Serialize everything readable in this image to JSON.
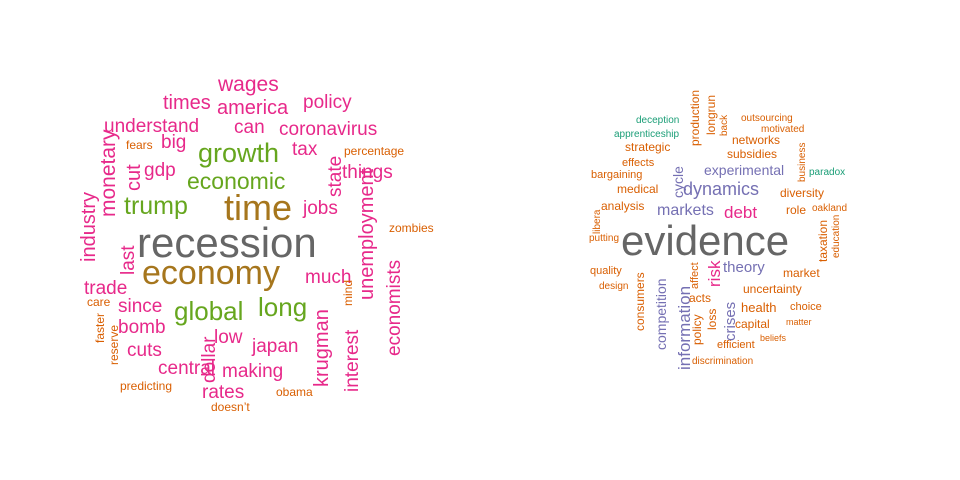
{
  "palette": {
    "gray": "#666666",
    "gold": "#A6761D",
    "green": "#66A61E",
    "pink": "#E7298A",
    "purple": "#7570B3",
    "orange": "#D95F02",
    "teal": "#1B9E77"
  },
  "clouds": [
    {
      "name": "left-word-cloud",
      "words": [
        {
          "text": "recession",
          "color": "gray"
        },
        {
          "text": "economy",
          "color": "gold"
        },
        {
          "text": "time",
          "color": "gold"
        },
        {
          "text": "growth",
          "color": "green"
        },
        {
          "text": "economic",
          "color": "green"
        },
        {
          "text": "trump",
          "color": "green"
        },
        {
          "text": "global",
          "color": "green"
        },
        {
          "text": "long",
          "color": "green"
        },
        {
          "text": "wages",
          "color": "pink"
        },
        {
          "text": "america",
          "color": "pink"
        },
        {
          "text": "times",
          "color": "pink"
        },
        {
          "text": "policy",
          "color": "pink"
        },
        {
          "text": "understand",
          "color": "pink"
        },
        {
          "text": "can",
          "color": "pink"
        },
        {
          "text": "coronavirus",
          "color": "pink"
        },
        {
          "text": "big",
          "color": "pink"
        },
        {
          "text": "tax",
          "color": "pink"
        },
        {
          "text": "monetary",
          "color": "pink"
        },
        {
          "text": "cut",
          "color": "pink"
        },
        {
          "text": "gdp",
          "color": "pink"
        },
        {
          "text": "things",
          "color": "pink"
        },
        {
          "text": "state",
          "color": "pink"
        },
        {
          "text": "jobs",
          "color": "pink"
        },
        {
          "text": "industry",
          "color": "pink"
        },
        {
          "text": "unemployment",
          "color": "pink"
        },
        {
          "text": "economists",
          "color": "pink"
        },
        {
          "text": "last",
          "color": "pink"
        },
        {
          "text": "trade",
          "color": "pink"
        },
        {
          "text": "much",
          "color": "pink"
        },
        {
          "text": "since",
          "color": "pink"
        },
        {
          "text": "bomb",
          "color": "pink"
        },
        {
          "text": "dollar",
          "color": "pink"
        },
        {
          "text": "low",
          "color": "pink"
        },
        {
          "text": "krugman",
          "color": "pink"
        },
        {
          "text": "interest",
          "color": "pink"
        },
        {
          "text": "cuts",
          "color": "pink"
        },
        {
          "text": "japan",
          "color": "pink"
        },
        {
          "text": "central",
          "color": "pink"
        },
        {
          "text": "making",
          "color": "pink"
        },
        {
          "text": "rates",
          "color": "pink"
        },
        {
          "text": "fears",
          "color": "orange"
        },
        {
          "text": "percentage",
          "color": "orange"
        },
        {
          "text": "zombies",
          "color": "orange"
        },
        {
          "text": "care",
          "color": "orange"
        },
        {
          "text": "faster",
          "color": "orange"
        },
        {
          "text": "reserve",
          "color": "orange"
        },
        {
          "text": "mind",
          "color": "orange"
        },
        {
          "text": "predicting",
          "color": "orange"
        },
        {
          "text": "obama",
          "color": "orange"
        },
        {
          "text": "doesn’t",
          "color": "orange"
        }
      ]
    },
    {
      "name": "right-word-cloud",
      "words": [
        {
          "text": "evidence",
          "color": "gray"
        },
        {
          "text": "dynamics",
          "color": "purple"
        },
        {
          "text": "markets",
          "color": "purple"
        },
        {
          "text": "experimental",
          "color": "purple"
        },
        {
          "text": "cycle",
          "color": "purple"
        },
        {
          "text": "theory",
          "color": "purple"
        },
        {
          "text": "information",
          "color": "purple"
        },
        {
          "text": "competition",
          "color": "purple"
        },
        {
          "text": "crises",
          "color": "purple"
        },
        {
          "text": "debt",
          "color": "pink"
        },
        {
          "text": "risk",
          "color": "pink"
        },
        {
          "text": "deception",
          "color": "teal"
        },
        {
          "text": "apprenticeship",
          "color": "teal"
        },
        {
          "text": "paradox",
          "color": "teal"
        },
        {
          "text": "production",
          "color": "orange"
        },
        {
          "text": "longrun",
          "color": "orange"
        },
        {
          "text": "back",
          "color": "orange"
        },
        {
          "text": "outsourcing",
          "color": "orange"
        },
        {
          "text": "motivated",
          "color": "orange"
        },
        {
          "text": "strategic",
          "color": "orange"
        },
        {
          "text": "networks",
          "color": "orange"
        },
        {
          "text": "business",
          "color": "orange"
        },
        {
          "text": "effects",
          "color": "orange"
        },
        {
          "text": "subsidies",
          "color": "orange"
        },
        {
          "text": "bargaining",
          "color": "orange"
        },
        {
          "text": "medical",
          "color": "orange"
        },
        {
          "text": "diversity",
          "color": "orange"
        },
        {
          "text": "analysis",
          "color": "orange"
        },
        {
          "text": "role",
          "color": "orange"
        },
        {
          "text": "oakland",
          "color": "orange"
        },
        {
          "text": "libera",
          "color": "orange"
        },
        {
          "text": "taxation",
          "color": "orange"
        },
        {
          "text": "education",
          "color": "orange"
        },
        {
          "text": "putting",
          "color": "orange"
        },
        {
          "text": "market",
          "color": "orange"
        },
        {
          "text": "quality",
          "color": "orange"
        },
        {
          "text": "affect",
          "color": "orange"
        },
        {
          "text": "uncertainty",
          "color": "orange"
        },
        {
          "text": "design",
          "color": "orange"
        },
        {
          "text": "consumers",
          "color": "orange"
        },
        {
          "text": "acts",
          "color": "orange"
        },
        {
          "text": "health",
          "color": "orange"
        },
        {
          "text": "choice",
          "color": "orange"
        },
        {
          "text": "loss",
          "color": "orange"
        },
        {
          "text": "policy",
          "color": "orange"
        },
        {
          "text": "capital",
          "color": "orange"
        },
        {
          "text": "matter",
          "color": "orange"
        },
        {
          "text": "beliefs",
          "color": "orange"
        },
        {
          "text": "efficient",
          "color": "orange"
        },
        {
          "text": "discrimination",
          "color": "orange"
        }
      ]
    }
  ]
}
